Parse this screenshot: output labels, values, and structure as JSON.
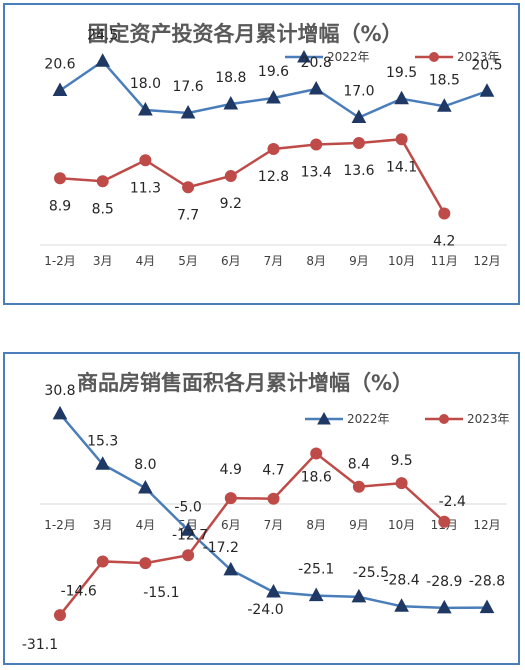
{
  "chart_data": [
    {
      "type": "line",
      "title": "固定资产投资各月累计增幅（%）",
      "categories": [
        "1-2月",
        "3月",
        "4月",
        "5月",
        "6月",
        "7月",
        "8月",
        "9月",
        "10月",
        "11月",
        "12月"
      ],
      "series": [
        {
          "name": "2022年",
          "color": "#4a7ebb",
          "marker": "triangle",
          "values": [
            20.6,
            24.5,
            18.0,
            17.6,
            18.8,
            19.6,
            20.8,
            17.0,
            19.5,
            18.5,
            20.5
          ],
          "labels": [
            "20.6",
            "24.5",
            "18.0",
            "17.6",
            "18.8",
            "19.6",
            "20.8",
            "17.0",
            "19.5",
            "18.5",
            "20.5"
          ]
        },
        {
          "name": "2023年",
          "color": "#be4b48",
          "marker": "circle",
          "values": [
            8.9,
            8.5,
            11.3,
            7.7,
            9.2,
            12.8,
            13.4,
            13.6,
            14.1,
            4.2,
            null
          ],
          "labels": [
            "8.9",
            "8.5",
            "11.3",
            "7.7",
            "9.2",
            "12.8",
            "13.4",
            "13.6",
            "14.1",
            "4.2",
            ""
          ]
        }
      ],
      "ylim": [
        0,
        28
      ],
      "legend": "top-right",
      "grid": false
    },
    {
      "type": "line",
      "title": "商品房销售面积各月累计增幅（%）",
      "categories": [
        "1-2月",
        "3月",
        "4月",
        "5月",
        "6月",
        "7月",
        "8月",
        "9月",
        "10月",
        "11月",
        "12月"
      ],
      "series": [
        {
          "name": "2022年",
          "color": "#4a7ebb",
          "marker": "triangle",
          "values": [
            30.8,
            15.3,
            8.0,
            -5.0,
            -17.2,
            -24.0,
            -25.1,
            -25.5,
            -28.4,
            -28.9,
            -28.8
          ],
          "labels": [
            "30.8",
            "15.3",
            "8.0",
            "-5.0",
            "-17.2",
            "-24.0",
            "-25.1",
            "-25.5",
            "-28.4",
            "-28.9",
            "-28.8"
          ]
        },
        {
          "name": "2023年",
          "color": "#be4b48",
          "marker": "circle",
          "values": [
            -31.1,
            -14.6,
            -15.1,
            -12.7,
            4.9,
            4.7,
            18.6,
            8.4,
            9.5,
            -2.4,
            null
          ],
          "labels": [
            "-31.1",
            "-14.6",
            "-15.1",
            "-12.7",
            "4.9",
            "4.7",
            "18.6",
            "8.4",
            "9.5",
            "-2.4",
            ""
          ]
        }
      ],
      "ylim": [
        -40,
        40
      ],
      "legend": "top-right",
      "grid": false
    }
  ]
}
